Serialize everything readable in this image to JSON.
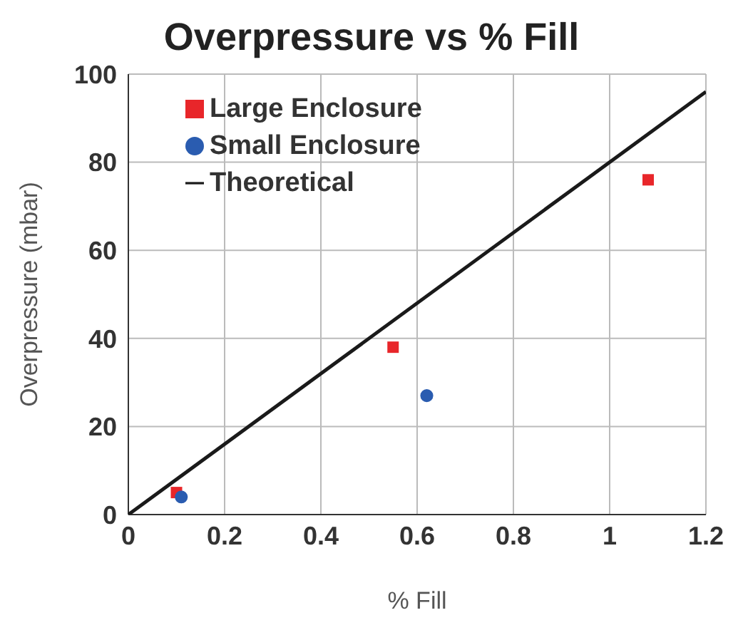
{
  "chart_data": {
    "type": "scatter",
    "title": "Overpressure vs % Fill",
    "xlabel": "% Fill",
    "ylabel": "Overpressure (mbar)",
    "series": [
      {
        "name": "Large Enclosure",
        "color": "#e8262a",
        "marker": "square",
        "x": [
          0.1,
          0.55,
          1.08
        ],
        "values": [
          5,
          38,
          76
        ]
      },
      {
        "name": "Small Enclosure",
        "color": "#2a5cb0",
        "marker": "circle",
        "x": [
          0.11,
          0.62
        ],
        "values": [
          4,
          27
        ]
      },
      {
        "name": "Theoretical",
        "type": "line",
        "color": "#1a1a1a",
        "marker": "none",
        "line_style": "solid",
        "x": [
          0,
          1.2
        ],
        "values": [
          0,
          96
        ]
      }
    ],
    "xlim": [
      0,
      1.2
    ],
    "xticks": [
      0,
      0.2,
      0.4,
      0.6,
      0.8,
      1,
      1.2
    ],
    "ylim": [
      0,
      100
    ],
    "yticks": [
      0,
      20,
      40,
      60,
      80,
      100
    ],
    "grid": true,
    "legend": "top left"
  }
}
